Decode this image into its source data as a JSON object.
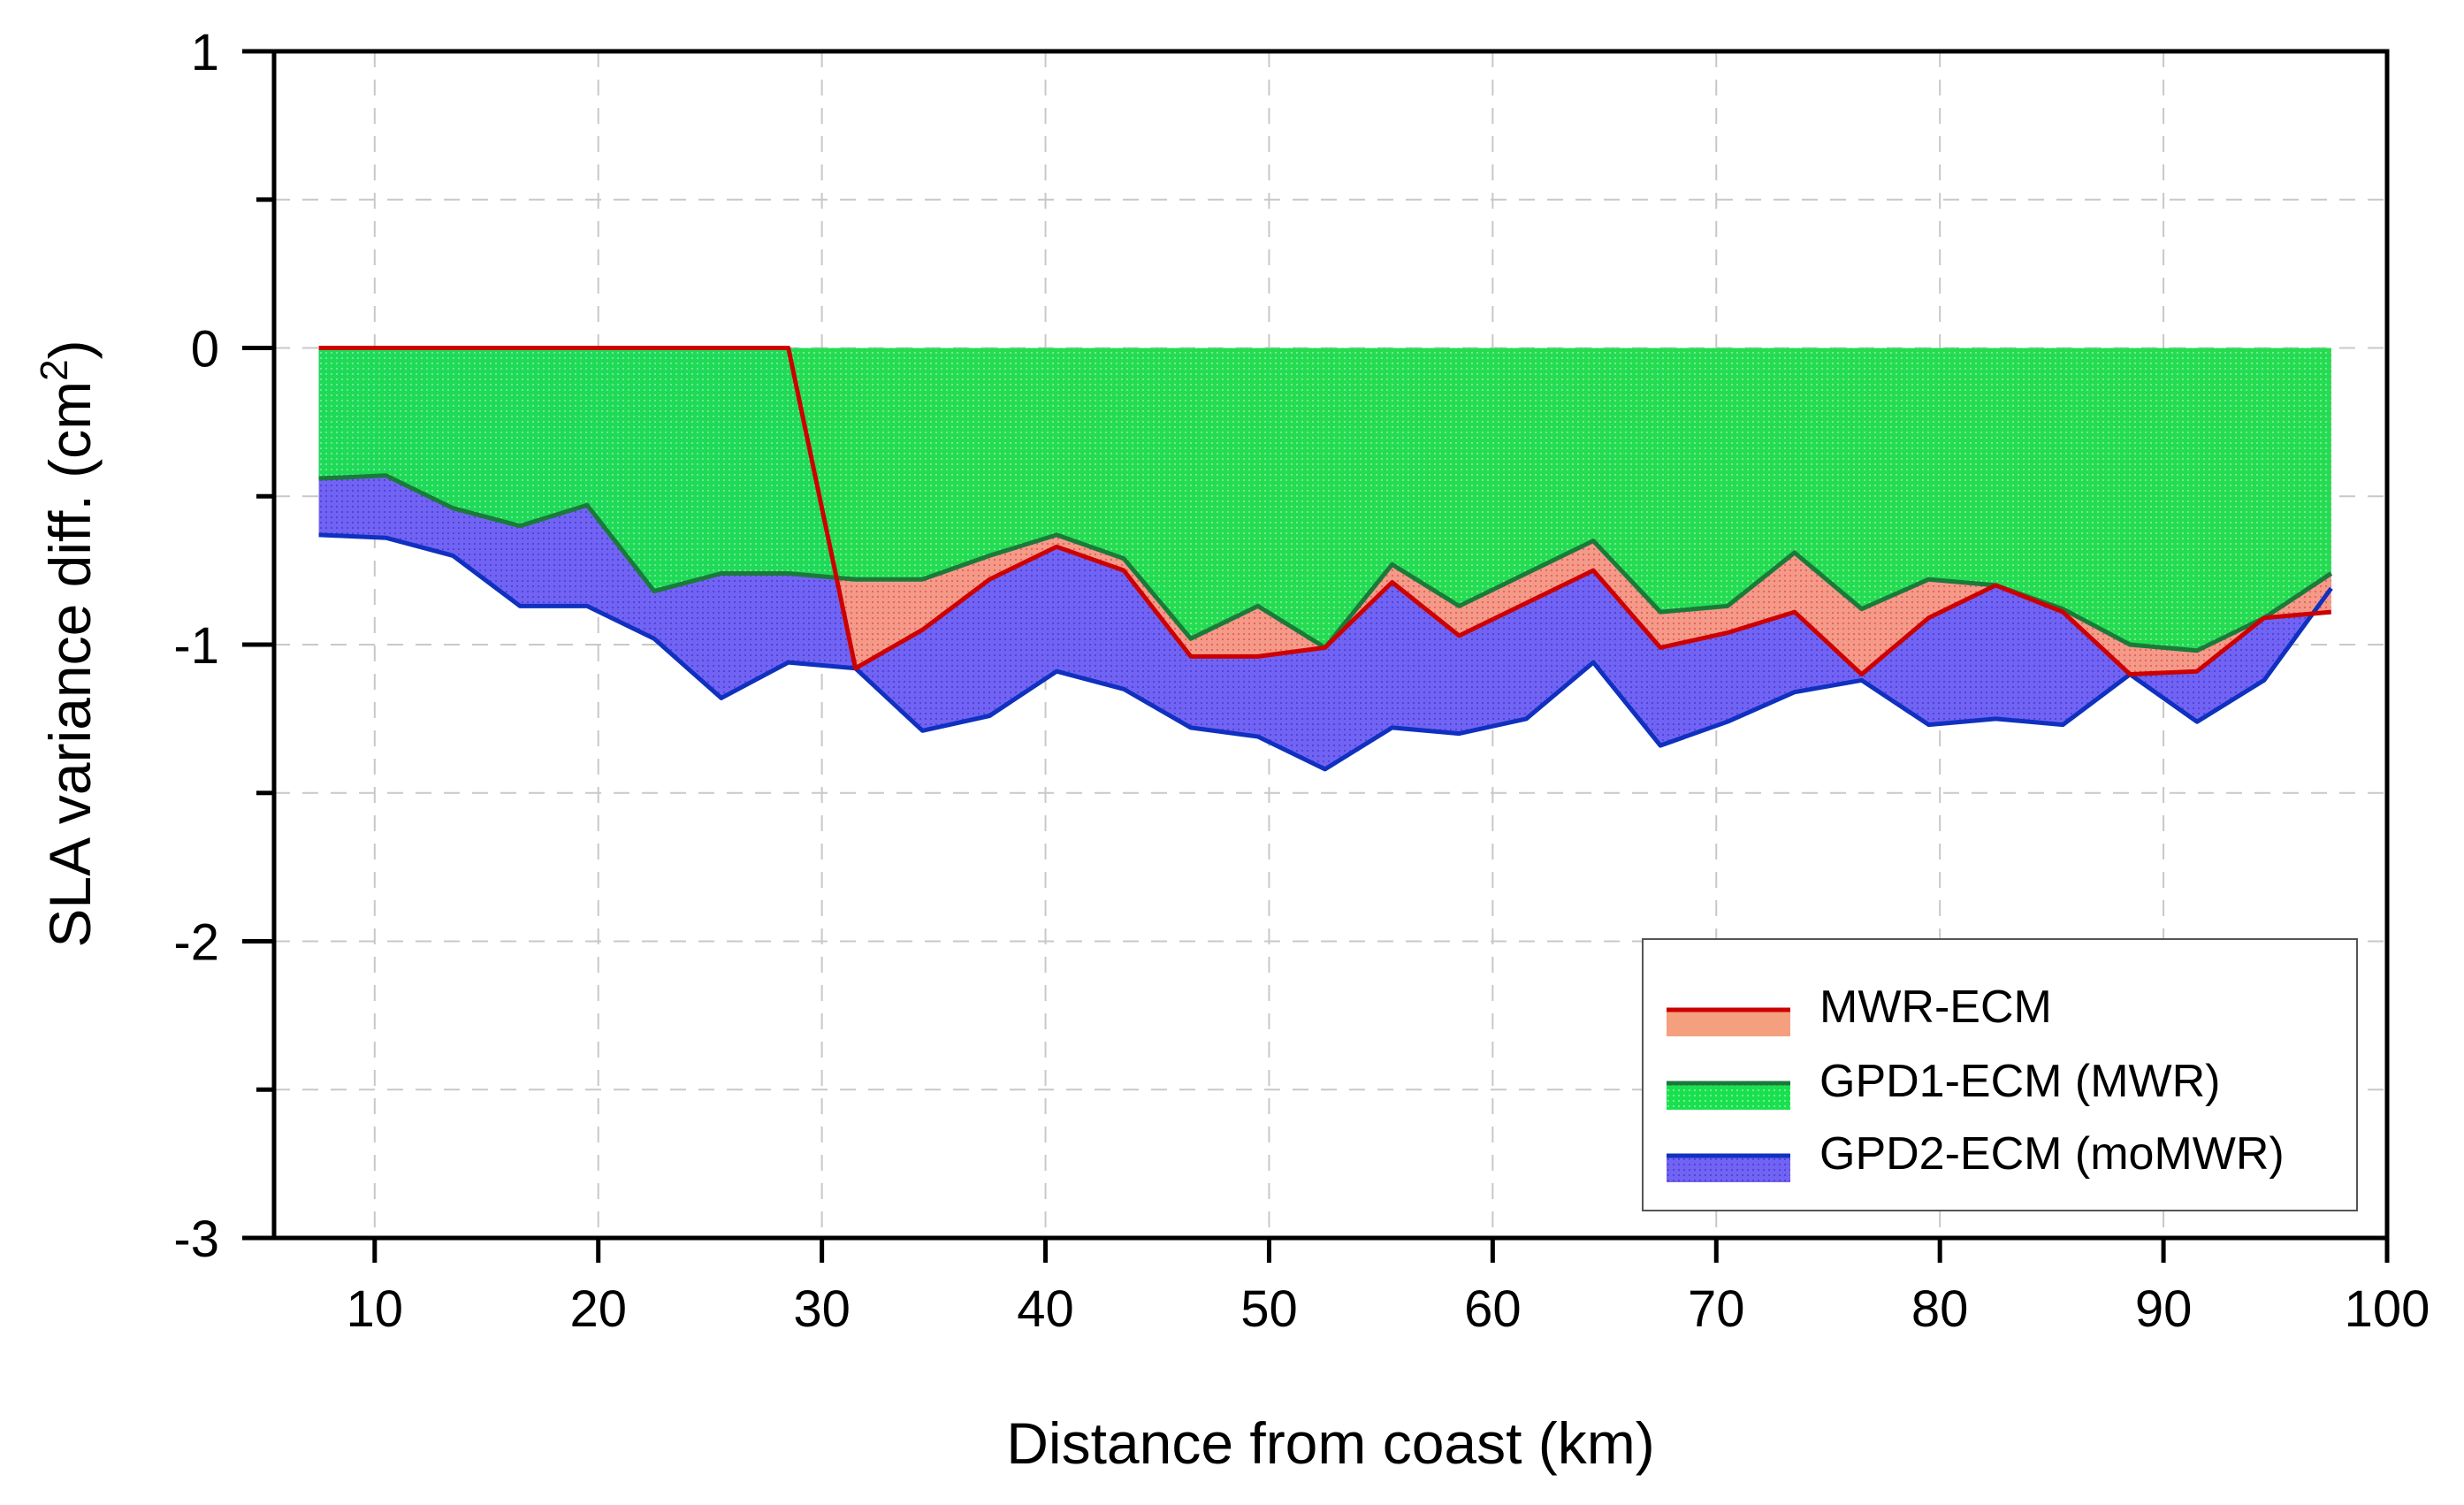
{
  "chart_data": {
    "type": "area",
    "title": "",
    "xlabel": "Distance from coast (km)",
    "ylabel_main": "SLA variance diff. (cm",
    "ylabel_sup": "2",
    "ylabel_close": ")",
    "xlim": [
      5.5,
      100
    ],
    "ylim": [
      -3,
      1
    ],
    "xticks": [
      10,
      20,
      30,
      40,
      50,
      60,
      70,
      80,
      90,
      100
    ],
    "xtick_labels": [
      "10",
      "20",
      "30",
      "40",
      "50",
      "60",
      "70",
      "80",
      "90",
      "100"
    ],
    "yticks": [
      1,
      0,
      -1,
      -2,
      -3
    ],
    "ytick_labels": [
      "1",
      "0",
      "-1",
      "-2",
      "-3"
    ],
    "yticks_minor": [
      0.5,
      -0.5,
      -1.5,
      -2.5
    ],
    "grid": true,
    "legend_position": "bottom-right",
    "x": [
      7.5,
      10.5,
      13.5,
      16.5,
      19.5,
      22.5,
      25.5,
      28.5,
      31.5,
      34.5,
      37.5,
      40.5,
      43.5,
      46.5,
      49.5,
      52.5,
      55.5,
      58.5,
      61.5,
      64.5,
      67.5,
      70.5,
      73.5,
      76.5,
      79.5,
      82.5,
      85.5,
      88.5,
      91.5,
      94.5,
      97.5
    ],
    "series": [
      {
        "name": "MWR-ECM",
        "line_color": "#cc0000",
        "fill_color": "#f08070",
        "values": [
          0,
          0,
          0,
          0,
          0,
          0,
          0,
          0,
          -1.08,
          -0.95,
          -0.78,
          -0.67,
          -0.75,
          -1.04,
          -1.04,
          -1.01,
          -0.79,
          -0.97,
          -0.86,
          -0.75,
          -1.01,
          -0.96,
          -0.89,
          -1.1,
          -0.91,
          -0.8,
          -0.89,
          -1.1,
          -1.09,
          -0.91,
          -0.89
        ]
      },
      {
        "name": "GPD1-ECM (MWR)",
        "line_color": "#1a7a3a",
        "fill_color": "#22dd55",
        "values": [
          -0.44,
          -0.43,
          -0.54,
          -0.6,
          -0.53,
          -0.82,
          -0.76,
          -0.76,
          -0.78,
          -0.78,
          -0.7,
          -0.63,
          -0.71,
          -0.98,
          -0.87,
          -1.01,
          -0.73,
          -0.87,
          -0.76,
          -0.65,
          -0.89,
          -0.87,
          -0.69,
          -0.88,
          -0.78,
          -0.8,
          -0.88,
          -1.0,
          -1.02,
          -0.91,
          -0.76
        ]
      },
      {
        "name": "GPD2-ECM (moMWR)",
        "line_color": "#1030c0",
        "fill_color": "#6a5cf0",
        "values": [
          -0.63,
          -0.64,
          -0.7,
          -0.87,
          -0.87,
          -0.98,
          -1.18,
          -1.06,
          -1.08,
          -1.29,
          -1.24,
          -1.09,
          -1.15,
          -1.28,
          -1.31,
          -1.42,
          -1.28,
          -1.3,
          -1.25,
          -1.06,
          -1.34,
          -1.26,
          -1.16,
          -1.12,
          -1.27,
          -1.25,
          -1.27,
          -1.1,
          -1.26,
          -1.12,
          -0.81
        ]
      }
    ]
  }
}
